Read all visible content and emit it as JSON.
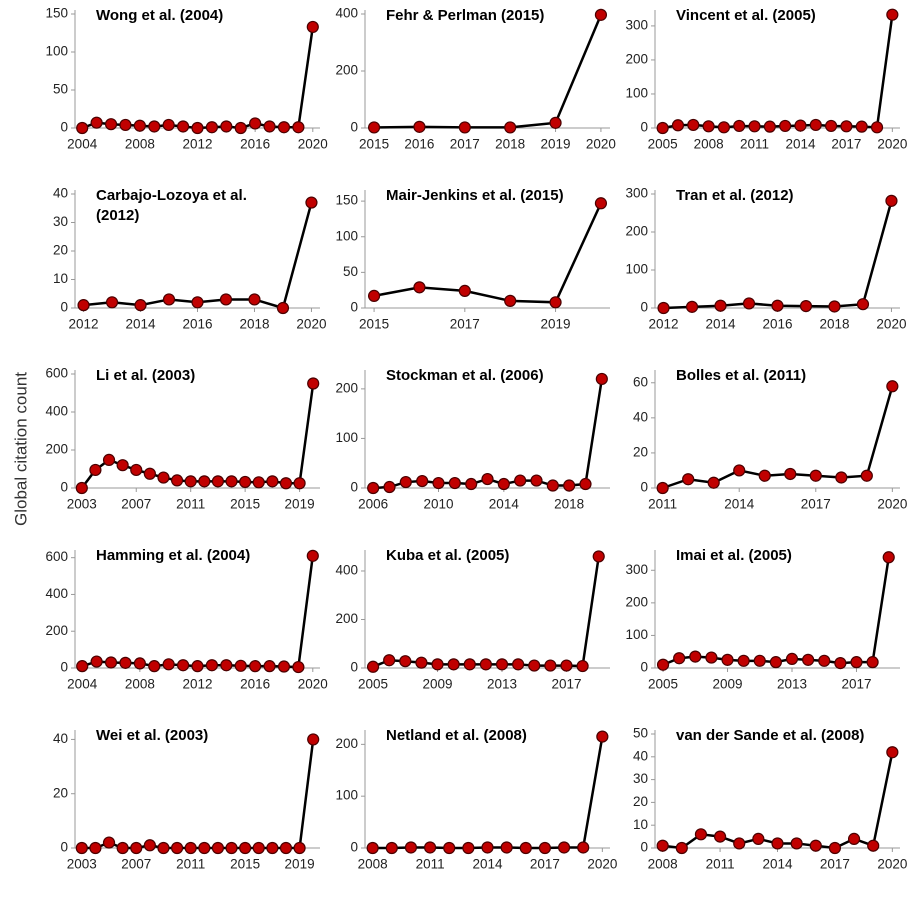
{
  "ylabel": "Global citation count",
  "chart_data": [
    {
      "type": "line",
      "title": "Wong et al. (2004)",
      "color": "#c00000",
      "x": [
        2004,
        2005,
        2006,
        2007,
        2008,
        2009,
        2010,
        2011,
        2012,
        2013,
        2014,
        2015,
        2016,
        2017,
        2018,
        2019,
        2020
      ],
      "values": [
        0,
        7,
        5,
        4,
        3,
        2,
        4,
        2,
        0,
        1,
        2,
        0,
        6,
        2,
        1,
        1,
        133
      ],
      "xlim": [
        2003.5,
        2020.5
      ],
      "xticks": [
        2004,
        2008,
        2012,
        2016,
        2020
      ],
      "ylim": [
        0,
        150
      ],
      "yticks": [
        0,
        50,
        100,
        150
      ]
    },
    {
      "type": "line",
      "title": "Fehr & Perlman (2015)",
      "color": "#c00000",
      "x": [
        2015,
        2016,
        2017,
        2018,
        2019,
        2020
      ],
      "values": [
        2,
        4,
        2,
        2,
        18,
        397
      ],
      "xlim": [
        2014.8,
        2020.2
      ],
      "xticks": [
        2015,
        2016,
        2017,
        2018,
        2019,
        2020
      ],
      "ylim": [
        0,
        400
      ],
      "yticks": [
        0,
        200,
        400
      ]
    },
    {
      "type": "line",
      "title": "Vincent et al. (2005)",
      "color": "#c00000",
      "x": [
        2005,
        2006,
        2007,
        2008,
        2009,
        2010,
        2011,
        2012,
        2013,
        2014,
        2015,
        2016,
        2017,
        2018,
        2019,
        2020
      ],
      "values": [
        0,
        8,
        9,
        5,
        2,
        6,
        5,
        4,
        6,
        7,
        9,
        6,
        5,
        4,
        2,
        333
      ],
      "xlim": [
        2004.5,
        2020.5
      ],
      "xticks": [
        2005,
        2008,
        2011,
        2014,
        2017,
        2020
      ],
      "ylim": [
        0,
        335
      ],
      "yticks": [
        0,
        100,
        200,
        300
      ]
    },
    {
      "type": "line",
      "title": "Carbajo-Lozoya et al. (2012)",
      "color": "#c00000",
      "x": [
        2012,
        2013,
        2014,
        2015,
        2016,
        2017,
        2018,
        2019,
        2020
      ],
      "values": [
        1,
        2,
        1,
        3,
        2,
        3,
        3,
        0,
        37
      ],
      "xlim": [
        2011.7,
        2020.3
      ],
      "xticks": [
        2012,
        2014,
        2016,
        2018,
        2020
      ],
      "ylim": [
        0,
        40
      ],
      "yticks": [
        0,
        10,
        20,
        30,
        40
      ]
    },
    {
      "type": "line",
      "title": "Mair-Jenkins et al. (2015)",
      "color": "#c00000",
      "x": [
        2015,
        2016,
        2017,
        2018,
        2019,
        2020
      ],
      "values": [
        17,
        29,
        24,
        10,
        8,
        147
      ],
      "xlim": [
        2014.8,
        2020.2
      ],
      "xticks": [
        2015,
        2017,
        2019
      ],
      "ylim": [
        0,
        160
      ],
      "yticks": [
        0,
        50,
        100,
        150
      ]
    },
    {
      "type": "line",
      "title": "Tran et al. (2012)",
      "color": "#c00000",
      "x": [
        2012,
        2013,
        2014,
        2015,
        2016,
        2017,
        2018,
        2019,
        2020
      ],
      "values": [
        0,
        3,
        6,
        12,
        6,
        5,
        4,
        10,
        282
      ],
      "xlim": [
        2011.7,
        2020.3
      ],
      "xticks": [
        2012,
        2014,
        2016,
        2018,
        2020
      ],
      "ylim": [
        0,
        300
      ],
      "yticks": [
        0,
        100,
        200,
        300
      ]
    },
    {
      "type": "line",
      "title": "Li et al. (2003)",
      "color": "#c00000",
      "x": [
        2003,
        2004,
        2005,
        2006,
        2007,
        2008,
        2009,
        2010,
        2011,
        2012,
        2013,
        2014,
        2015,
        2016,
        2017,
        2018,
        2019,
        2020
      ],
      "values": [
        0,
        95,
        148,
        120,
        95,
        75,
        55,
        40,
        35,
        35,
        35,
        35,
        32,
        30,
        35,
        25,
        25,
        550
      ],
      "xlim": [
        2002.5,
        2020.5
      ],
      "xticks": [
        2003,
        2007,
        2011,
        2015,
        2019
      ],
      "ylim": [
        0,
        600
      ],
      "yticks": [
        0,
        200,
        400,
        600
      ]
    },
    {
      "type": "line",
      "title": "Stockman et al. (2006)",
      "color": "#c00000",
      "x": [
        2006,
        2007,
        2008,
        2009,
        2010,
        2011,
        2012,
        2013,
        2014,
        2015,
        2016,
        2017,
        2018,
        2019,
        2020
      ],
      "values": [
        0,
        2,
        12,
        14,
        10,
        10,
        8,
        18,
        8,
        15,
        15,
        5,
        5,
        8,
        220
      ],
      "xlim": [
        2005.5,
        2020.5
      ],
      "xticks": [
        2006,
        2010,
        2014,
        2018
      ],
      "ylim": [
        0,
        230
      ],
      "yticks": [
        0,
        100,
        200
      ]
    },
    {
      "type": "line",
      "title": "Bolles et al. (2011)",
      "color": "#c00000",
      "x": [
        2011,
        2012,
        2013,
        2014,
        2015,
        2016,
        2017,
        2018,
        2019,
        2020
      ],
      "values": [
        0,
        5,
        3,
        10,
        7,
        8,
        7,
        6,
        7,
        58
      ],
      "xlim": [
        2010.7,
        2020.3
      ],
      "xticks": [
        2011,
        2014,
        2017,
        2020
      ],
      "ylim": [
        0,
        65
      ],
      "yticks": [
        0,
        20,
        40,
        60
      ]
    },
    {
      "type": "line",
      "title": "Hamming et al. (2004)",
      "color": "#c00000",
      "x": [
        2004,
        2005,
        2006,
        2007,
        2008,
        2009,
        2010,
        2011,
        2012,
        2013,
        2014,
        2015,
        2016,
        2017,
        2018,
        2019,
        2020
      ],
      "values": [
        10,
        35,
        30,
        28,
        25,
        10,
        20,
        15,
        10,
        15,
        15,
        12,
        10,
        10,
        8,
        5,
        610
      ],
      "xlim": [
        2003.5,
        2020.5
      ],
      "xticks": [
        2004,
        2008,
        2012,
        2016,
        2020
      ],
      "ylim": [
        0,
        620
      ],
      "yticks": [
        0,
        200,
        400,
        600
      ]
    },
    {
      "type": "line",
      "title": "Kuba et al. (2005)",
      "color": "#c00000",
      "x": [
        2005,
        2006,
        2007,
        2008,
        2009,
        2010,
        2011,
        2012,
        2013,
        2014,
        2015,
        2016,
        2017,
        2018,
        2019
      ],
      "values": [
        5,
        32,
        28,
        22,
        15,
        15,
        15,
        15,
        15,
        15,
        10,
        10,
        10,
        8,
        460
      ],
      "xlim": [
        2004.5,
        2019.7
      ],
      "xticks": [
        2005,
        2009,
        2013,
        2017
      ],
      "ylim": [
        0,
        470
      ],
      "yticks": [
        0,
        200,
        400
      ]
    },
    {
      "type": "line",
      "title": "Imai et al. (2005)",
      "color": "#c00000",
      "x": [
        2005,
        2006,
        2007,
        2008,
        2009,
        2010,
        2011,
        2012,
        2013,
        2014,
        2015,
        2016,
        2017,
        2018,
        2019
      ],
      "values": [
        10,
        30,
        35,
        32,
        25,
        22,
        22,
        18,
        28,
        25,
        22,
        15,
        18,
        18,
        340
      ],
      "xlim": [
        2004.5,
        2019.7
      ],
      "xticks": [
        2005,
        2009,
        2013,
        2017
      ],
      "ylim": [
        0,
        350
      ],
      "yticks": [
        0,
        100,
        200,
        300
      ]
    },
    {
      "type": "line",
      "title": "Wei et al. (2003)",
      "color": "#c00000",
      "x": [
        2003,
        2004,
        2005,
        2006,
        2007,
        2008,
        2009,
        2010,
        2011,
        2012,
        2013,
        2014,
        2015,
        2016,
        2017,
        2018,
        2019,
        2020
      ],
      "values": [
        0,
        0,
        2,
        0,
        0,
        1,
        0,
        0,
        0,
        0,
        0,
        0,
        0,
        0,
        0,
        0,
        0,
        40
      ],
      "xlim": [
        2002.5,
        2020.5
      ],
      "xticks": [
        2003,
        2007,
        2011,
        2015,
        2019
      ],
      "ylim": [
        0,
        42
      ],
      "yticks": [
        0,
        20,
        40
      ]
    },
    {
      "type": "line",
      "title": "Netland et al. (2008)",
      "color": "#c00000",
      "x": [
        2008,
        2009,
        2010,
        2011,
        2012,
        2013,
        2014,
        2015,
        2016,
        2017,
        2018,
        2019,
        2020
      ],
      "values": [
        0,
        0,
        1,
        1,
        0,
        0,
        1,
        1,
        0,
        0,
        1,
        1,
        215
      ],
      "xlim": [
        2007.6,
        2020.4
      ],
      "xticks": [
        2008,
        2011,
        2014,
        2017,
        2020
      ],
      "ylim": [
        0,
        220
      ],
      "yticks": [
        0,
        100,
        200
      ]
    },
    {
      "type": "line",
      "title": "van der Sande et al. (2008)",
      "color": "#c00000",
      "x": [
        2008,
        2009,
        2010,
        2011,
        2012,
        2013,
        2014,
        2015,
        2016,
        2017,
        2018,
        2019,
        2020
      ],
      "values": [
        1,
        0,
        6,
        5,
        2,
        4,
        2,
        2,
        1,
        0,
        4,
        1,
        42
      ],
      "xlim": [
        2007.6,
        2020.4
      ],
      "xticks": [
        2008,
        2011,
        2014,
        2017,
        2020
      ],
      "ylim": [
        0,
        50
      ],
      "yticks": [
        0,
        10,
        20,
        30,
        40,
        50
      ]
    }
  ]
}
